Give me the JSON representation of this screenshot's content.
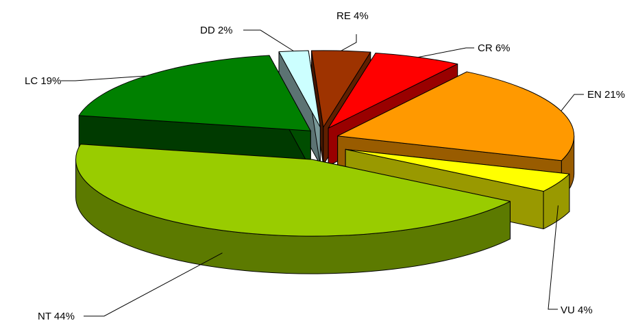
{
  "chart_data": {
    "type": "pie",
    "style": "3d-exploded",
    "title": "",
    "legend": "none",
    "slices": [
      {
        "key": "RE",
        "label": "RE 4%",
        "value": 4,
        "color": "#9e3300"
      },
      {
        "key": "CR",
        "label": "CR 6%",
        "value": 6,
        "color": "#ff0000"
      },
      {
        "key": "EN",
        "label": "EN 21%",
        "value": 21,
        "color": "#ff9900"
      },
      {
        "key": "VU",
        "label": "VU 4%",
        "value": 4,
        "color": "#ffff00"
      },
      {
        "key": "NT",
        "label": "NT 44%",
        "value": 44,
        "color": "#99cc00"
      },
      {
        "key": "LC",
        "label": "LC 19%",
        "value": 19,
        "color": "#008000"
      },
      {
        "key": "DD",
        "label": "DD 2%",
        "value": 2,
        "color": "#ccffff"
      }
    ]
  }
}
